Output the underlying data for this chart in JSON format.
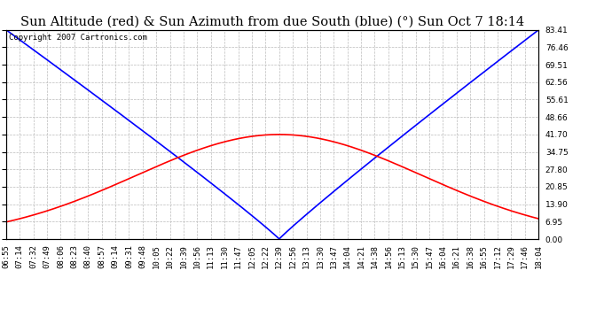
{
  "title": "Sun Altitude (red) & Sun Azimuth from due South (blue) (°) Sun Oct 7 18:14",
  "copyright_text": "Copyright 2007 Cartronics.com",
  "yticks": [
    0.0,
    6.95,
    13.9,
    20.85,
    27.8,
    34.75,
    41.7,
    48.66,
    55.61,
    62.56,
    69.51,
    76.46,
    83.41
  ],
  "ymax": 83.41,
  "ymin": 0.0,
  "background_color": "#ffffff",
  "plot_background": "#ffffff",
  "grid_color": "#bbbbbb",
  "title_fontsize": 10.5,
  "tick_fontsize": 6.5,
  "copyright_fontsize": 6.5,
  "altitude_color": "red",
  "azimuth_color": "blue",
  "peak_alt_idx": 20,
  "alt_sigma": 10.5,
  "alt_peak_value": 41.7,
  "n_points": 40,
  "xtick_labels": [
    "06:55",
    "07:14",
    "07:32",
    "07:49",
    "08:06",
    "08:23",
    "08:40",
    "08:57",
    "09:14",
    "09:31",
    "09:48",
    "10:05",
    "10:22",
    "10:39",
    "10:56",
    "11:13",
    "11:30",
    "11:47",
    "12:05",
    "12:22",
    "12:39",
    "12:56",
    "13:13",
    "13:30",
    "13:47",
    "14:04",
    "14:21",
    "14:38",
    "14:56",
    "15:13",
    "15:30",
    "15:47",
    "16:04",
    "16:21",
    "16:38",
    "16:55",
    "17:12",
    "17:29",
    "17:46",
    "18:04"
  ]
}
